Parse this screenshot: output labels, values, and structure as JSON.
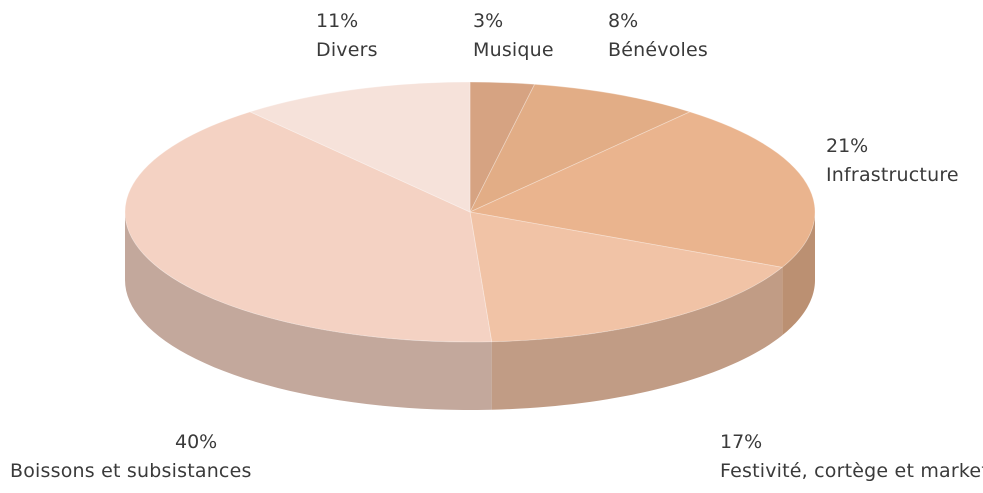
{
  "chart_data": {
    "type": "pie",
    "style": "3d",
    "slices": [
      {
        "label": "Musique",
        "percent_label": "3%",
        "value": 3,
        "color": "#d6a382"
      },
      {
        "label": "Bénévoles",
        "percent_label": "8%",
        "value": 8,
        "color": "#e2ad86"
      },
      {
        "label": "Infrastructure",
        "percent_label": "21%",
        "value": 21,
        "color": "#eab48e"
      },
      {
        "label": "Festivité, cortège et marketing",
        "percent_label": "17%",
        "value": 17,
        "color": "#f1c3a6"
      },
      {
        "label": "Boissons et subsistances",
        "percent_label": "40%",
        "value": 40,
        "color": "#f4d2c3"
      },
      {
        "label": "Divers",
        "percent_label": "11%",
        "value": 11,
        "color": "#f6e2da"
      }
    ],
    "legend": "none"
  }
}
